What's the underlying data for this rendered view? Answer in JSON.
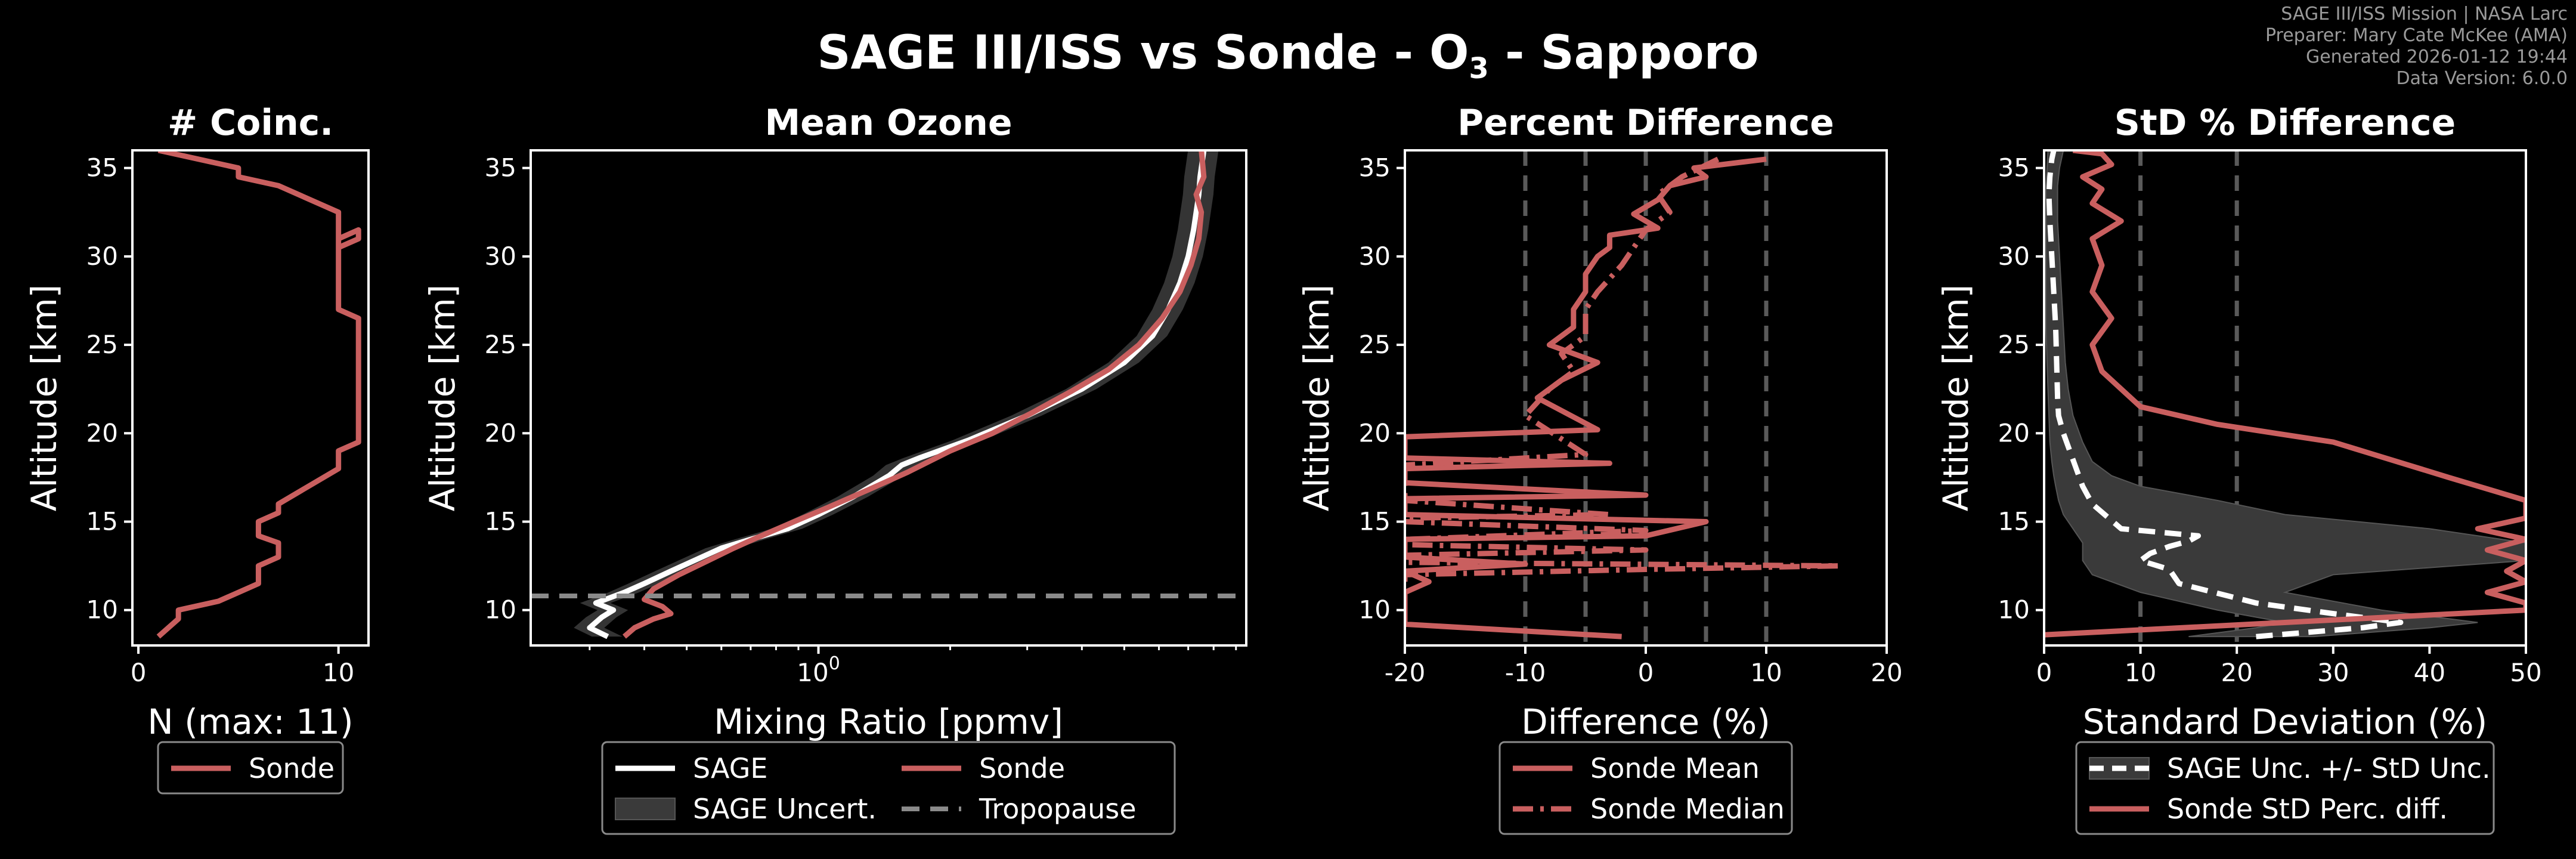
{
  "figure": {
    "title_main": "SAGE III/ISS vs Sonde - O",
    "title_sub": "3",
    "title_tail": " - Sapporo",
    "metadata": [
      "SAGE III/ISS Mission | NASA Larc",
      "Preparer: Mary Cate McKee (AMA)",
      "Generated 2026-01-12 19:44",
      "Data Version: 6.0.0"
    ],
    "colors": {
      "background": "#000000",
      "sonde": "#c95f5f",
      "sage": "#ffffff",
      "tropopause": "#8a8a8a",
      "uncert": "#3a3a3a",
      "grid_dash": "#5a5a5a"
    }
  },
  "chart_data": [
    {
      "id": "coinc",
      "type": "line",
      "title": "# Coinc.",
      "xlabel": "N (max: 11)",
      "ylabel": "Altitude [km]",
      "xlim": [
        -0.3,
        11.5
      ],
      "ylim": [
        8,
        36
      ],
      "xticks": [
        0,
        10
      ],
      "yticks": [
        10,
        15,
        20,
        25,
        30,
        35
      ],
      "legend": [
        {
          "label": "Sonde",
          "style": "sonde-solid"
        }
      ],
      "series": [
        {
          "name": "Sonde",
          "style": "sonde-solid",
          "x": [
            1,
            2,
            2,
            4,
            6,
            6,
            7,
            7,
            6,
            6,
            7,
            7,
            10,
            10,
            11,
            11,
            10,
            10,
            11,
            11,
            10,
            10,
            7,
            5,
            5,
            1
          ],
          "y": [
            8.5,
            9.5,
            10,
            10.5,
            11.5,
            12.5,
            13,
            13.8,
            14.2,
            15,
            15.5,
            16,
            18,
            19,
            19.5,
            26.5,
            27,
            31,
            31.5,
            31,
            30.5,
            32.5,
            34,
            34.5,
            35,
            36
          ]
        }
      ]
    },
    {
      "id": "mean_ozone",
      "type": "line",
      "title": "Mean Ozone",
      "xlabel": "Mixing Ratio [ppmv]",
      "ylabel": "Altitude [km]",
      "xscale": "log",
      "xlim": [
        0.22,
        9.5
      ],
      "ylim": [
        8,
        36
      ],
      "xticks": [
        {
          "value": 1,
          "label_base": "10",
          "label_exp": "0"
        }
      ],
      "yticks": [
        10,
        15,
        20,
        25,
        30,
        35
      ],
      "tropopause_km": 10.8,
      "legend": [
        {
          "label": "SAGE",
          "style": "sage-solid"
        },
        {
          "label": "Sonde",
          "style": "sonde-solid"
        },
        {
          "label": "SAGE Uncert.",
          "style": "uncert-fill"
        },
        {
          "label": "Tropopause",
          "style": "tropo-dash"
        }
      ],
      "series": [
        {
          "name": "SAGE",
          "style": "sage-solid",
          "x": [
            0.33,
            0.3,
            0.32,
            0.34,
            0.31,
            0.36,
            0.4,
            0.46,
            0.52,
            0.6,
            0.7,
            0.85,
            1.0,
            1.2,
            1.45,
            1.55,
            1.7,
            2.2,
            3.0,
            4.0,
            5.0,
            5.8,
            6.3,
            6.7,
            7.0,
            7.2,
            7.3,
            7.4,
            7.45,
            7.6
          ],
          "y": [
            8.5,
            9.0,
            9.6,
            10.0,
            10.4,
            11.0,
            11.5,
            12.2,
            12.8,
            13.5,
            14.0,
            14.6,
            15.4,
            16.4,
            17.6,
            18.2,
            18.6,
            19.6,
            21.0,
            22.5,
            24.0,
            25.5,
            27.0,
            28.5,
            30.0,
            31.5,
            32.5,
            33.5,
            34.5,
            36.0
          ]
        },
        {
          "name": "Sonde",
          "style": "sonde-solid",
          "x": [
            0.36,
            0.38,
            0.42,
            0.46,
            0.44,
            0.4,
            0.42,
            0.48,
            0.56,
            0.64,
            0.74,
            0.88,
            1.05,
            1.3,
            1.6,
            2.0,
            2.5,
            3.1,
            3.8,
            4.6,
            5.4,
            6.1,
            6.7,
            7.1,
            7.4,
            7.5,
            7.3,
            7.6,
            7.5
          ],
          "y": [
            8.5,
            9.0,
            9.5,
            9.8,
            10.2,
            10.6,
            11.2,
            12.0,
            12.8,
            13.5,
            14.2,
            15.0,
            15.8,
            16.8,
            17.8,
            19.0,
            20.0,
            21.2,
            22.4,
            23.6,
            25.0,
            26.5,
            28.0,
            29.5,
            31.0,
            32.5,
            33.5,
            34.5,
            36.0
          ]
        }
      ]
    },
    {
      "id": "percent_diff",
      "type": "line",
      "title": "Percent Difference",
      "xlabel": "Difference (%)",
      "ylabel": "Altitude [km]",
      "xlim": [
        -20,
        20
      ],
      "ylim": [
        8,
        36
      ],
      "xticks": [
        -20,
        -10,
        0,
        10,
        20
      ],
      "yticks": [
        10,
        15,
        20,
        25,
        30,
        35
      ],
      "ref_lines": [
        -10,
        -5,
        0,
        5,
        10
      ],
      "legend": [
        {
          "label": "Sonde Mean",
          "style": "sonde-solid"
        },
        {
          "label": "Sonde Median",
          "style": "sonde-dashdot"
        }
      ],
      "series": [
        {
          "name": "Sonde Mean",
          "style": "sonde-solid",
          "x": [
            -2,
            -20,
            -20,
            -18,
            -20,
            -10,
            -20,
            -20,
            0,
            5,
            -20,
            -20,
            0,
            -20,
            -20,
            -3,
            -20,
            -20,
            -4,
            -9,
            -7,
            -4,
            -8,
            -6,
            -6,
            -5,
            -5,
            -4,
            -3,
            -3,
            1,
            -1,
            1,
            2,
            5,
            4,
            10
          ],
          "y": [
            8.5,
            9.2,
            11.0,
            11.6,
            12.2,
            12.6,
            13.0,
            14.0,
            14.2,
            15.0,
            15.4,
            16.3,
            16.5,
            17.2,
            18.0,
            18.3,
            18.6,
            19.8,
            20.2,
            22.0,
            23.0,
            24.0,
            25.0,
            26.0,
            27.0,
            28.0,
            29.0,
            30.0,
            30.5,
            31.2,
            31.6,
            32.4,
            33.2,
            34.0,
            34.5,
            35.0,
            35.5
          ]
        },
        {
          "name": "Sonde Median",
          "style": "sonde-dashdot",
          "x": [
            -20,
            -20,
            0,
            16,
            -20,
            -20,
            0,
            -20,
            -20,
            0,
            -20,
            -20,
            -3,
            -20,
            -20,
            -5,
            -10,
            -8,
            -6,
            -7,
            -5,
            -5,
            -4,
            -2,
            -1,
            0,
            2,
            1,
            3,
            6
          ],
          "y": [
            11.6,
            12.0,
            12.3,
            12.5,
            12.7,
            13.1,
            13.4,
            13.7,
            14.0,
            14.5,
            15.0,
            15.2,
            15.4,
            16.2,
            18.2,
            18.8,
            21.0,
            22.5,
            23.5,
            24.5,
            25.5,
            27.0,
            28.0,
            29.5,
            30.5,
            31.5,
            32.5,
            33.5,
            34.5,
            35.5
          ]
        }
      ]
    },
    {
      "id": "std_diff",
      "type": "line",
      "title": "StD % Difference",
      "xlabel": "Standard Deviation (%)",
      "ylabel": "Altitude [km]",
      "xlim": [
        0,
        50
      ],
      "ylim": [
        8,
        36
      ],
      "xticks": [
        0,
        10,
        20,
        30,
        40,
        50
      ],
      "yticks": [
        10,
        15,
        20,
        25,
        30,
        35
      ],
      "ref_lines": [
        10,
        20
      ],
      "legend": [
        {
          "label": "SAGE Unc. +/- StD Unc.",
          "style": "sage-dash-fill"
        },
        {
          "label": "Sonde StD Perc. diff.",
          "style": "sonde-solid"
        }
      ],
      "series": [
        {
          "name": "SAGE Unc. +/- StD Unc.",
          "style": "sage-dash",
          "x": [
            22,
            33,
            37,
            30,
            22,
            14,
            13,
            10,
            11,
            13,
            15,
            16,
            8,
            5,
            4,
            3,
            2,
            1.5,
            1.4,
            1.3,
            1.2,
            1.0,
            0.8,
            0.6,
            0.5,
            0.6,
            0.8,
            1.0
          ],
          "y": [
            8.5,
            9.0,
            9.3,
            9.8,
            10.4,
            11.5,
            12.3,
            12.8,
            13.2,
            13.6,
            13.9,
            14.2,
            14.6,
            16.0,
            17.0,
            18.5,
            20.0,
            21.0,
            22.0,
            24.0,
            26.0,
            28.0,
            30.0,
            32.0,
            33.5,
            34.5,
            35.5,
            36.0
          ]
        },
        {
          "name": "Sonde StD Perc. diff.",
          "style": "sonde-solid",
          "x": [
            0,
            50,
            50,
            46,
            50,
            48,
            50,
            46,
            50,
            45,
            50,
            50,
            42,
            30,
            18,
            10,
            8,
            6,
            5,
            7,
            5,
            6,
            5,
            8,
            5,
            6,
            4,
            7,
            6,
            3
          ],
          "y": [
            8.6,
            10.0,
            10.4,
            11.0,
            11.6,
            12.2,
            12.8,
            13.4,
            14.0,
            14.6,
            15.2,
            16.2,
            17.5,
            19.5,
            20.5,
            21.5,
            22.5,
            23.5,
            25.0,
            26.5,
            28.0,
            29.5,
            31.0,
            32.0,
            33.0,
            33.8,
            34.5,
            35.2,
            35.8,
            36.0
          ]
        }
      ],
      "band": {
        "name": "SAGE Unc. band",
        "upper_x": [
          28,
          40,
          45,
          35,
          25,
          30,
          50,
          50,
          40,
          25,
          18,
          10,
          7,
          5,
          4,
          3,
          2.5,
          2.2,
          2.0,
          1.8,
          1.6,
          1.4,
          1.4,
          1.6,
          2.0
        ],
        "lower_x": [
          15,
          22,
          25,
          18,
          10,
          5,
          4,
          4,
          3,
          2,
          1.5,
          1.2,
          1.0,
          0.8,
          0.6,
          0.5,
          0.4,
          0.3,
          0.2,
          0.2,
          0.2,
          0.2,
          0.2,
          0.3,
          0.4
        ],
        "y": [
          8.5,
          9.0,
          9.3,
          10.0,
          11.0,
          12.0,
          12.8,
          13.8,
          14.6,
          15.4,
          16.2,
          17.0,
          17.6,
          18.4,
          19.5,
          21.0,
          22.5,
          24.0,
          26.0,
          28.0,
          30.0,
          32.0,
          34.0,
          35.0,
          36.0
        ]
      }
    }
  ]
}
